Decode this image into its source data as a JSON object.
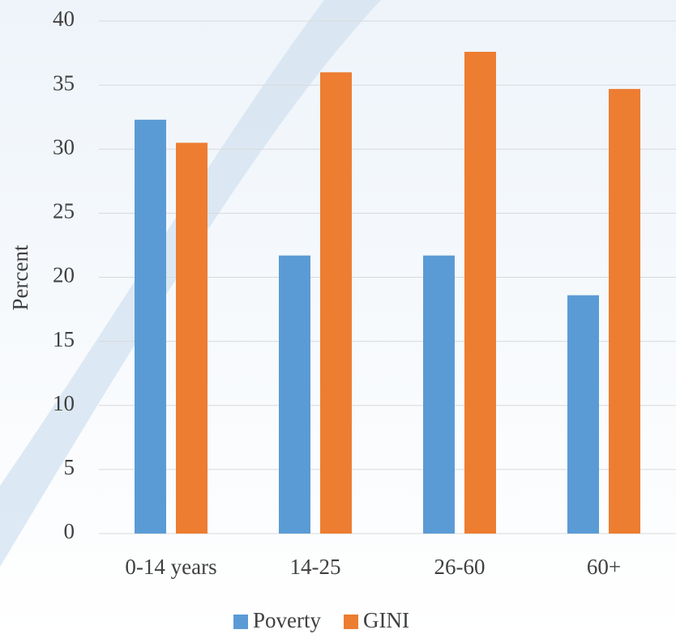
{
  "chart_data": {
    "type": "bar",
    "y_label": "Percent",
    "categories": [
      "0-14 years",
      "14-25",
      "26-60",
      "60+"
    ],
    "series": [
      {
        "name": "Poverty",
        "color": "#5b9bd5",
        "values": [
          32.3,
          21.7,
          21.7,
          18.6
        ]
      },
      {
        "name": "GINI",
        "color": "#ed7d31",
        "values": [
          30.5,
          36.0,
          37.6,
          34.7
        ]
      }
    ],
    "ylim": [
      0,
      40
    ],
    "yticks": [
      0,
      5,
      10,
      15,
      20,
      25,
      30,
      35,
      40
    ],
    "grid": true,
    "legend": "bottom"
  }
}
